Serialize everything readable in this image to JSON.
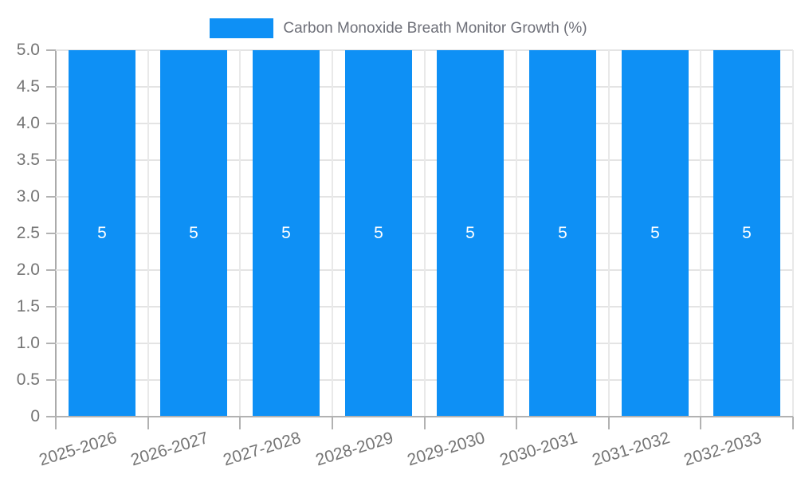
{
  "legend": {
    "label": "Carbon Monoxide Breath Monitor Growth (%)"
  },
  "chart_data": {
    "type": "bar",
    "title": "Carbon Monoxide Breath Monitor Growth (%)",
    "categories": [
      "2025-2026",
      "2026-2027",
      "2027-2028",
      "2028-2029",
      "2029-2030",
      "2030-2031",
      "2031-2032",
      "2032-2033"
    ],
    "values": [
      5,
      5,
      5,
      5,
      5,
      5,
      5,
      5
    ],
    "bar_value_labels": [
      "5",
      "5",
      "5",
      "5",
      "5",
      "5",
      "5",
      "5"
    ],
    "xlabel": "",
    "ylabel": "",
    "ylim": [
      0,
      5
    ],
    "ytick_labels": [
      "0",
      "0.5",
      "1.0",
      "1.5",
      "2.0",
      "2.5",
      "3.0",
      "3.5",
      "4.0",
      "4.5",
      "5.0"
    ],
    "grid": true,
    "legend_position": "top",
    "x_label_rotation_deg": -17,
    "colors": {
      "bar": "#0E90F5",
      "axis_text": "#757575",
      "legend_text": "#6E7079",
      "grid_line": "#E4E4E4",
      "axis_line": "#B2B2B2",
      "bar_value_text": "#FFFFFF"
    }
  }
}
